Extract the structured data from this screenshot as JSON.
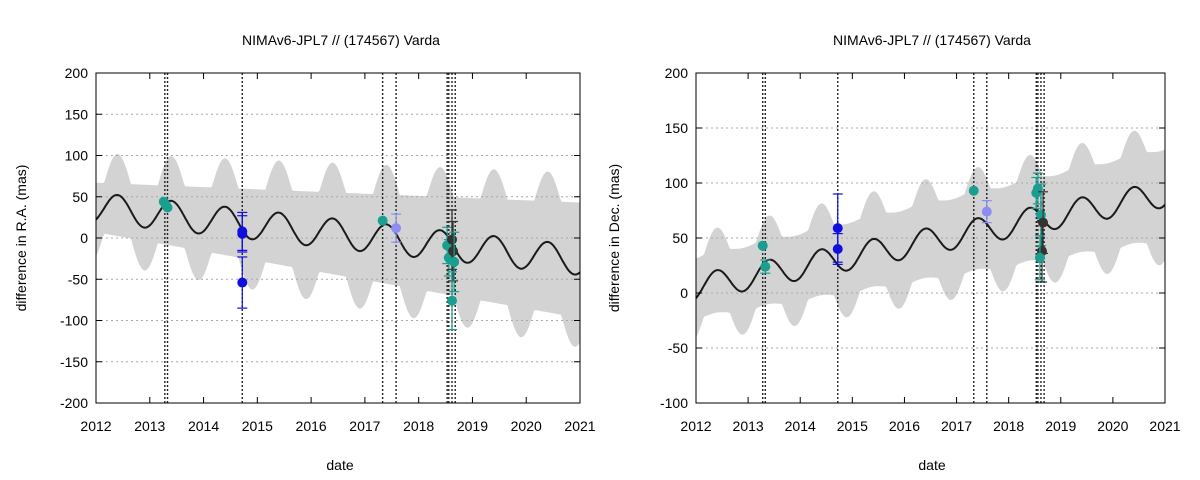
{
  "chart_data": [
    {
      "type": "line",
      "title": "NIMAv6-JPL7 // (174567) Varda",
      "xlabel": "date",
      "ylabel": "difference in R.A. (mas)",
      "xlim": [
        2012,
        2021
      ],
      "ylim": [
        -200,
        200
      ],
      "x_ticks": [
        "2012",
        "2013",
        "2014",
        "2015",
        "2016",
        "2017",
        "2018",
        "2019",
        "2020",
        "2021"
      ],
      "y_ticks": [
        "200",
        "150",
        "100",
        "50",
        "0",
        "-50",
        "-100",
        "-150",
        "-200"
      ],
      "grid": true,
      "colors": {
        "band": "#d3d3d3",
        "line": "#1a1a1a",
        "teal": "#1a9e8f",
        "blue": "#1010dd",
        "lightblue": "#8c8cf2",
        "dark": "#333333"
      },
      "model_curve": {
        "mean_start": 37,
        "mean_end": -27,
        "amplitude": 18,
        "period_years": 1.0,
        "phase_peak_year": 2012.4
      },
      "uncertainty_band": {
        "base_start": 30,
        "base_end": 70,
        "bump_amplitude": 18
      },
      "vertical_lines": [
        2013.28,
        2013.33,
        2014.72,
        2017.33,
        2017.58,
        2018.53,
        2018.56,
        2018.62,
        2018.68
      ],
      "observations": [
        {
          "x": 2013.26,
          "y": 44,
          "err": 0,
          "color": "teal"
        },
        {
          "x": 2013.3,
          "y": 40,
          "err": 0,
          "color": "teal"
        },
        {
          "x": 2013.33,
          "y": 37,
          "err": 0,
          "color": "teal"
        },
        {
          "x": 2014.72,
          "y": 8,
          "err": 23,
          "color": "blue"
        },
        {
          "x": 2014.72,
          "y": 5,
          "err": 22,
          "color": "blue"
        },
        {
          "x": 2014.72,
          "y": -54,
          "err": 31,
          "color": "blue"
        },
        {
          "x": 2017.33,
          "y": 21,
          "err": 0,
          "color": "teal"
        },
        {
          "x": 2017.58,
          "y": 12,
          "err": 17,
          "color": "lightblue"
        },
        {
          "x": 2018.53,
          "y": -9,
          "err": 22,
          "color": "teal"
        },
        {
          "x": 2018.56,
          "y": -24,
          "err": 22,
          "color": "teal"
        },
        {
          "x": 2018.62,
          "y": -2,
          "err": 36,
          "color": "dark"
        },
        {
          "x": 2018.64,
          "y": -16,
          "err": 36,
          "color": "dark"
        },
        {
          "x": 2018.66,
          "y": -29,
          "err": 36,
          "color": "teal"
        },
        {
          "x": 2018.62,
          "y": -76,
          "err": 35,
          "color": "teal"
        }
      ]
    },
    {
      "type": "line",
      "title": "NIMAv6-JPL7 // (174567) Varda",
      "xlabel": "date",
      "ylabel": "difference in Dec. (mas)",
      "xlim": [
        2012,
        2021
      ],
      "ylim": [
        -100,
        200
      ],
      "x_ticks": [
        "2012",
        "2013",
        "2014",
        "2015",
        "2016",
        "2017",
        "2018",
        "2019",
        "2020",
        "2021"
      ],
      "y_ticks": [
        "200",
        "150",
        "100",
        "50",
        "0",
        "-50",
        "-100"
      ],
      "grid": true,
      "colors": {
        "band": "#d3d3d3",
        "line": "#1a1a1a",
        "teal": "#1a9e8f",
        "blue": "#1010dd",
        "lightblue": "#8c8cf2",
        "dark": "#333333"
      },
      "model_curve": {
        "mean_start": 5,
        "mean_end": 90,
        "amplitude": 12,
        "period_years": 1.0,
        "phase_peak_year": 2012.4
      },
      "uncertainty_band": {
        "base_start": 28,
        "base_end": 42,
        "bump_amplitude": 10
      },
      "vertical_lines": [
        2013.28,
        2013.33,
        2014.72,
        2017.33,
        2017.58,
        2018.53,
        2018.56,
        2018.62,
        2018.68
      ],
      "observations": [
        {
          "x": 2013.28,
          "y": 43,
          "err": 0,
          "color": "teal"
        },
        {
          "x": 2013.33,
          "y": 24,
          "err": 6,
          "color": "teal"
        },
        {
          "x": 2014.72,
          "y": 59,
          "err": 31,
          "color": "blue"
        },
        {
          "x": 2014.72,
          "y": 40,
          "err": 14,
          "color": "blue"
        },
        {
          "x": 2017.33,
          "y": 93,
          "err": 0,
          "color": "teal"
        },
        {
          "x": 2017.58,
          "y": 74,
          "err": 10,
          "color": "lightblue"
        },
        {
          "x": 2018.53,
          "y": 91,
          "err": 14,
          "color": "teal"
        },
        {
          "x": 2018.56,
          "y": 95,
          "err": 14,
          "color": "teal"
        },
        {
          "x": 2018.62,
          "y": 71,
          "err": 28,
          "color": "teal"
        },
        {
          "x": 2018.66,
          "y": 64,
          "err": 28,
          "color": "dark"
        },
        {
          "x": 2018.64,
          "y": 38,
          "err": 28,
          "color": "dark"
        },
        {
          "x": 2018.6,
          "y": 32,
          "err": 20,
          "color": "teal"
        }
      ]
    }
  ]
}
